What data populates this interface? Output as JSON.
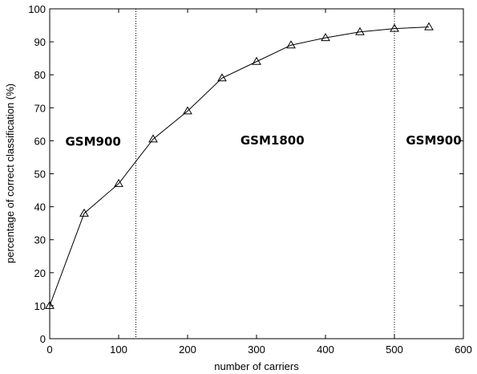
{
  "chart_data": {
    "type": "line",
    "title": "",
    "xlabel": "number of carriers",
    "ylabel": "percentage of correct classification (%)",
    "xlim": [
      0,
      600
    ],
    "ylim": [
      0,
      100
    ],
    "xticks": [
      "0",
      "100",
      "200",
      "300",
      "400",
      "500",
      "600"
    ],
    "yticks": [
      "0",
      "10",
      "20",
      "30",
      "40",
      "50",
      "60",
      "70",
      "80",
      "90",
      "100"
    ],
    "grid": false,
    "series": [
      {
        "marker": "triangle",
        "color": "#000000",
        "x": [
          0,
          50,
          100,
          150,
          200,
          250,
          300,
          350,
          400,
          450,
          500,
          550
        ],
        "y": [
          10,
          38,
          47,
          60.5,
          69,
          79,
          84,
          89,
          91.2,
          93,
          94,
          94.5
        ]
      }
    ],
    "vlines": [
      {
        "x": 125,
        "style": "dotted"
      },
      {
        "x": 500,
        "style": "dotted"
      }
    ],
    "annotations": [
      {
        "text": "GSM900",
        "x": 63,
        "y": 60
      },
      {
        "text": "GSM1800",
        "x": 323,
        "y": 60.3
      },
      {
        "text": "GSM900",
        "x": 557,
        "y": 60.3
      }
    ]
  }
}
